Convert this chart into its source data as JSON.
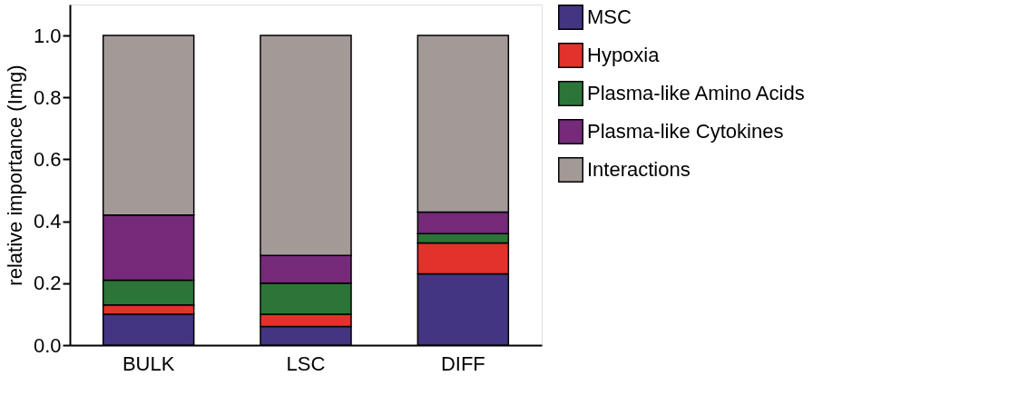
{
  "chart_data": {
    "type": "bar",
    "stacked": true,
    "ylabel": "relative importance (Img)",
    "categories": [
      "BULK",
      "LSC",
      "DIFF"
    ],
    "series": [
      {
        "name": "MSC",
        "color": "#433581",
        "values": [
          0.1,
          0.06,
          0.23
        ]
      },
      {
        "name": "Hypoxia",
        "color": "#e3322b",
        "values": [
          0.03,
          0.04,
          0.1
        ]
      },
      {
        "name": "Plasma-like Amino Acids",
        "color": "#2b7538",
        "values": [
          0.08,
          0.1,
          0.03
        ]
      },
      {
        "name": "Plasma-like Cytokines",
        "color": "#752a7a",
        "values": [
          0.21,
          0.09,
          0.07
        ]
      },
      {
        "name": "Interactions",
        "color": "#a39a98",
        "values": [
          0.58,
          0.71,
          0.57
        ]
      }
    ],
    "ylim": [
      0,
      1.1
    ],
    "yticks": [
      {
        "value": 0,
        "label": "0.0"
      },
      0.2,
      0.4,
      0.6,
      0.8,
      {
        "value": 1,
        "label": "1.0"
      }
    ],
    "grid": false,
    "legend": "right"
  }
}
